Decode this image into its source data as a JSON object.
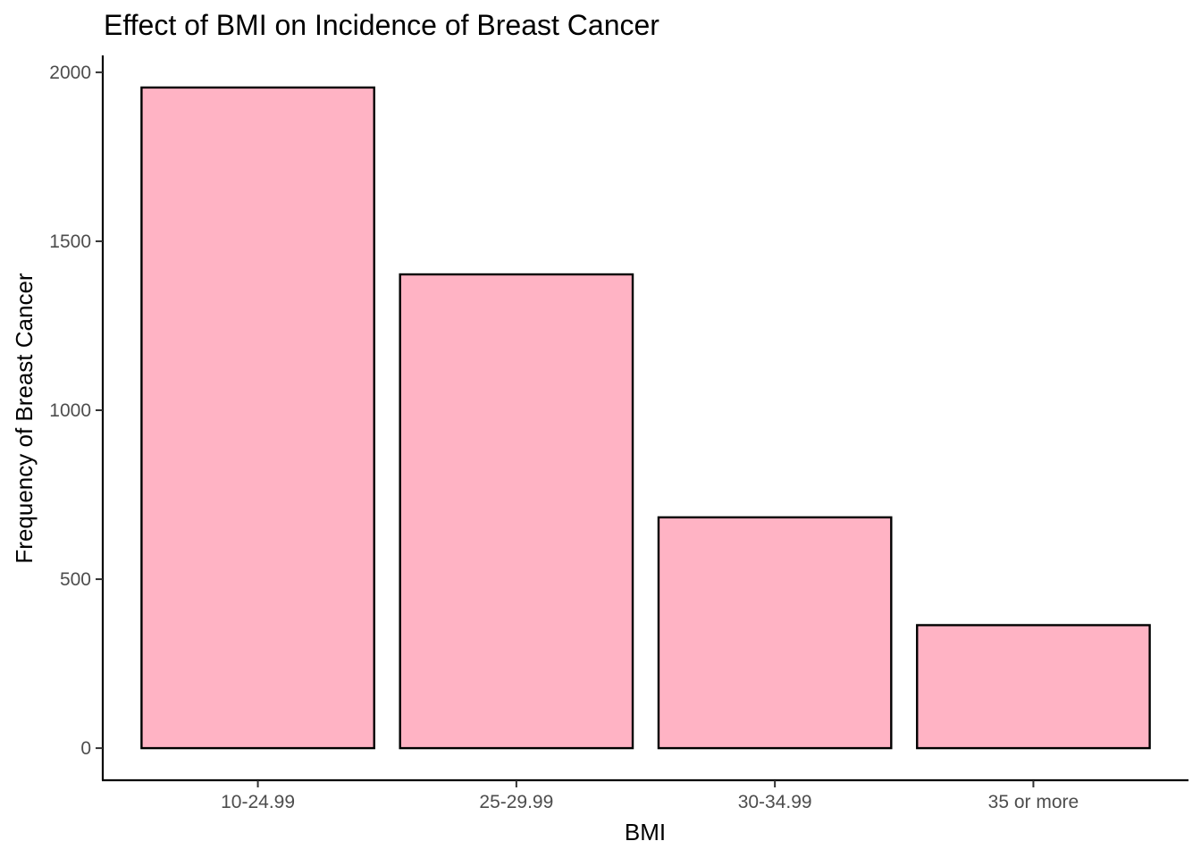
{
  "chart_data": {
    "type": "bar",
    "title": "Effect of BMI on Incidence of Breast Cancer",
    "xlabel": "BMI",
    "ylabel": "Frequency of Breast Cancer",
    "categories": [
      "10-24.99",
      "25-29.99",
      "30-34.99",
      "35 or more"
    ],
    "values": [
      1955,
      1402,
      683,
      364
    ],
    "ylim": [
      -95,
      2050
    ],
    "yticks": [
      0,
      500,
      1000,
      1500,
      2000
    ],
    "grid": false,
    "legend": "none",
    "colors": {
      "bar_fill": "#FFB3C4",
      "bar_stroke": "#000000"
    }
  }
}
